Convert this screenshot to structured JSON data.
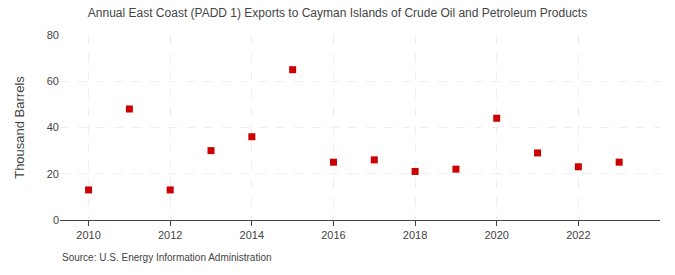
{
  "chart_data": {
    "type": "scatter",
    "title": "Annual East Coast (PADD 1) Exports to Cayman Islands of Crude Oil and Petroleum Products",
    "ylabel": "Thousand Barrels",
    "source": "Source: U.S. Energy Information Administration",
    "x": [
      2010,
      2011,
      2012,
      2013,
      2014,
      2015,
      2016,
      2017,
      2018,
      2019,
      2020,
      2021,
      2022,
      2023
    ],
    "values": [
      13,
      48,
      13,
      30,
      36,
      65,
      25,
      26,
      21,
      22,
      44,
      29,
      23,
      25
    ],
    "color": "#cc0000",
    "marker": "square",
    "xlim": [
      2009.3,
      2024.0
    ],
    "xticks": [
      2010,
      2012,
      2014,
      2016,
      2018,
      2020,
      2022
    ],
    "ylim": [
      0,
      80
    ],
    "yticks": [
      0,
      20,
      40,
      60,
      80
    ],
    "grid": true
  }
}
